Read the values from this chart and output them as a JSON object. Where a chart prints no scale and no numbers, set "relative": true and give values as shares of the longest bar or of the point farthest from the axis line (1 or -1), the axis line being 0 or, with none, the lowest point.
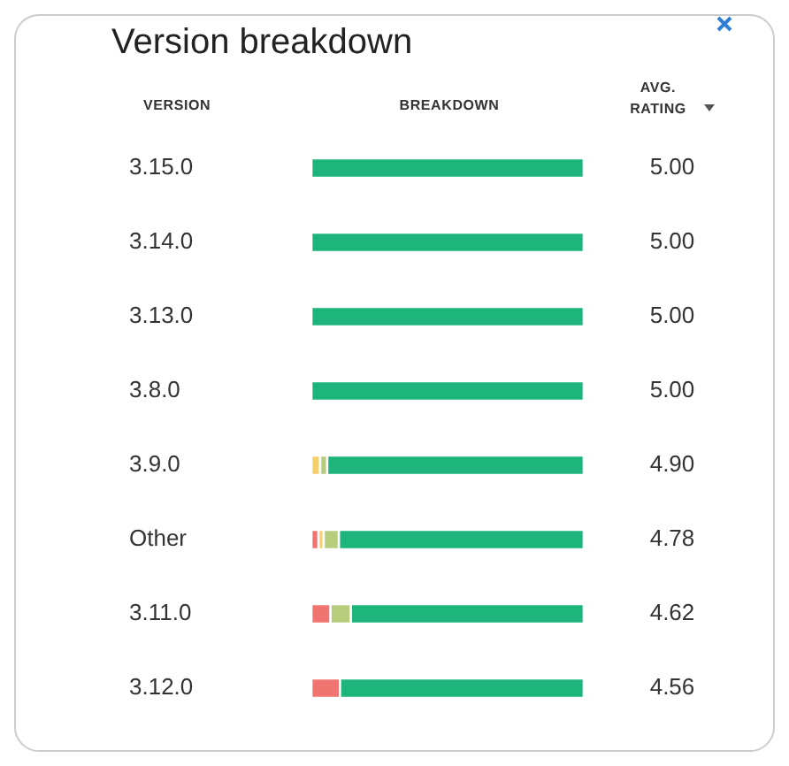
{
  "chart_data": {
    "type": "bar",
    "title": "Version breakdown",
    "xlabel": "BREAKDOWN",
    "ylabel": "VERSION",
    "orientation": "horizontal",
    "stacked": true,
    "relative": true,
    "legend": false,
    "categories": [
      "3.15.0",
      "3.14.0",
      "3.13.0",
      "3.8.0",
      "3.9.0",
      "Other",
      "3.11.0",
      "3.12.0"
    ],
    "series": [
      {
        "color": "#f07470",
        "values": [
          null,
          null,
          null,
          null,
          null,
          0.026,
          0.07,
          0.105
        ]
      },
      {
        "color": "#f5d06a",
        "values": [
          null,
          null,
          null,
          null,
          0.032,
          0.019,
          null,
          null
        ]
      },
      {
        "color": "#b8cd7c",
        "values": [
          null,
          null,
          null,
          null,
          0.026,
          0.056,
          0.075,
          null
        ]
      },
      {
        "color": "#1db57b",
        "values": [
          1,
          1,
          1,
          1,
          0.942,
          0.899,
          0.855,
          0.895
        ]
      }
    ],
    "annotations": [
      "AVG. RATING",
      "5.00",
      "5.00",
      "5.00",
      "5.00",
      "4.90",
      "4.78",
      "4.62",
      "4.56"
    ]
  }
}
